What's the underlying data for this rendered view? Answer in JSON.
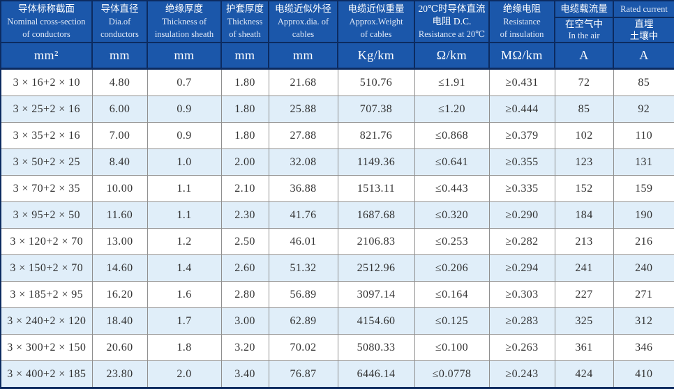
{
  "colors": {
    "header_bg": "#1b57aa",
    "header_border": "#0c2b60",
    "alt_row_bg": "#e0eef9",
    "grid_line": "#8f8f8f",
    "data_text": "#323232",
    "header_zh_text": "#ffffff",
    "header_en_text": "#dfe8f6"
  },
  "table": {
    "header": {
      "columns": [
        {
          "lines": [
            "导体标称截面",
            "Nominal cross-section",
            "of conductors"
          ],
          "unit": "mm²"
        },
        {
          "lines": [
            "导体直径",
            "Dia.of",
            "conductors"
          ],
          "unit": "mm"
        },
        {
          "lines": [
            "绝缘厚度",
            "Thickness of",
            "insulation sheath"
          ],
          "unit": "mm"
        },
        {
          "lines": [
            "护套厚度",
            "Thickness",
            "of sheath"
          ],
          "unit": "mm"
        },
        {
          "lines": [
            "电缆近似外径",
            "Approx.dia. of",
            "cables"
          ],
          "unit": "mm"
        },
        {
          "lines": [
            "电缆近似重量",
            "Approx.Weight",
            "of cables"
          ],
          "unit": "Kg/km"
        },
        {
          "lines": [
            "20℃时导体直流",
            "电阻 D.C.",
            "Resistance at 20℃"
          ],
          "unit": "Ω/km"
        },
        {
          "lines": [
            "绝缘电阻",
            "Resistance",
            "of insulation"
          ],
          "unit": "MΩ/km"
        }
      ],
      "current_group": {
        "top": [
          "电缆载流量",
          "Rated current"
        ],
        "sub": [
          [
            "在空气中",
            "In the air"
          ],
          [
            "直埋",
            "土壤中"
          ]
        ],
        "units": [
          "A",
          "A"
        ]
      }
    },
    "rows": [
      [
        "3 × 16+2 × 10",
        "4.80",
        "0.7",
        "1.80",
        "21.68",
        "510.76",
        "≤1.91",
        "≥0.431",
        "72",
        "85"
      ],
      [
        "3 × 25+2 × 16",
        "6.00",
        "0.9",
        "1.80",
        "25.88",
        "707.38",
        "≤1.20",
        "≥0.444",
        "85",
        "92"
      ],
      [
        "3 × 35+2 × 16",
        "7.00",
        "0.9",
        "1.80",
        "27.88",
        "821.76",
        "≤0.868",
        "≥0.379",
        "102",
        "110"
      ],
      [
        "3 × 50+2 × 25",
        "8.40",
        "1.0",
        "2.00",
        "32.08",
        "1149.36",
        "≤0.641",
        "≥0.355",
        "123",
        "131"
      ],
      [
        "3 × 70+2 × 35",
        "10.00",
        "1.1",
        "2.10",
        "36.88",
        "1513.11",
        "≤0.443",
        "≥0.335",
        "152",
        "159"
      ],
      [
        "3 × 95+2 × 50",
        "11.60",
        "1.1",
        "2.30",
        "41.76",
        "1687.68",
        "≤0.320",
        "≥0.290",
        "184",
        "190"
      ],
      [
        "3 × 120+2 × 70",
        "13.00",
        "1.2",
        "2.50",
        "46.01",
        "2106.83",
        "≤0.253",
        "≥0.282",
        "213",
        "216"
      ],
      [
        "3 × 150+2 × 70",
        "14.60",
        "1.4",
        "2.60",
        "51.32",
        "2512.96",
        "≤0.206",
        "≥0.294",
        "241",
        "240"
      ],
      [
        "3 × 185+2 × 95",
        "16.20",
        "1.6",
        "2.80",
        "56.89",
        "3097.14",
        "≤0.164",
        "≥0.303",
        "227",
        "271"
      ],
      [
        "3 × 240+2 × 120",
        "18.40",
        "1.7",
        "3.00",
        "62.89",
        "4154.60",
        "≤0.125",
        "≥0.283",
        "325",
        "312"
      ],
      [
        "3 × 300+2 × 150",
        "20.60",
        "1.8",
        "3.20",
        "70.02",
        "5080.33",
        "≤0.100",
        "≥0.263",
        "361",
        "346"
      ],
      [
        "3 × 400+2 × 185",
        "23.80",
        "2.0",
        "3.40",
        "76.87",
        "6446.14",
        "≤0.0778",
        "≥0.243",
        "424",
        "410"
      ]
    ]
  }
}
